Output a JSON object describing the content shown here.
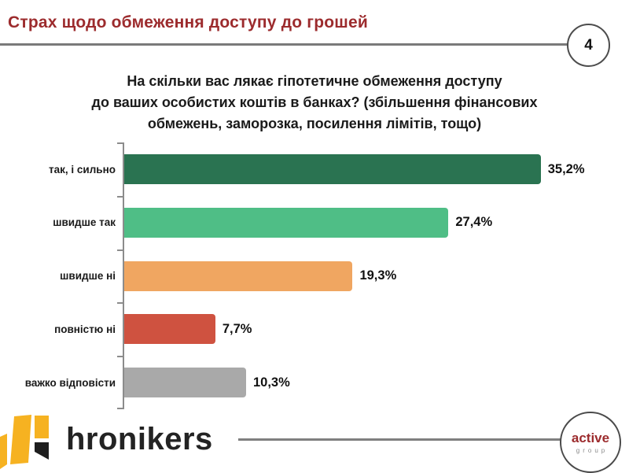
{
  "page": {
    "header_title": "Страх щодо обмеження доступу до грошей",
    "page_number": "4"
  },
  "chart_data": {
    "type": "bar",
    "orientation": "horizontal",
    "title_lines": [
      "На скільки вас лякає гіпотетичне обмеження доступу",
      "до ваших особистих коштів в банках? (збільшення фінансових",
      "обмежень, заморозка, посилення лімітів, тощо)"
    ],
    "categories": [
      "так, і сильно",
      "швидше так",
      "швидше ні",
      "повністю ні",
      "важко відповісти"
    ],
    "values": [
      35.2,
      27.4,
      19.3,
      7.7,
      10.3
    ],
    "value_labels": [
      "35,2%",
      "27,4%",
      "19,3%",
      "7,7%",
      "10,3%"
    ],
    "bar_colors": [
      "#2a7351",
      "#4fbe86",
      "#f0a661",
      "#cf5240",
      "#a9a9a9"
    ],
    "xlim": [
      0,
      40
    ],
    "grid": false,
    "legend": false,
    "xlabel": "",
    "ylabel": ""
  },
  "footer": {
    "brand": "hronikers",
    "partner_line1": "active",
    "partner_line2": "group"
  },
  "colors": {
    "header_red": "#9c2b2d",
    "rule_gray": "#7a7a7a",
    "axis_gray": "#8c8c8c",
    "brand_yellow": "#f6b221",
    "brand_black": "#1e1e1e"
  }
}
